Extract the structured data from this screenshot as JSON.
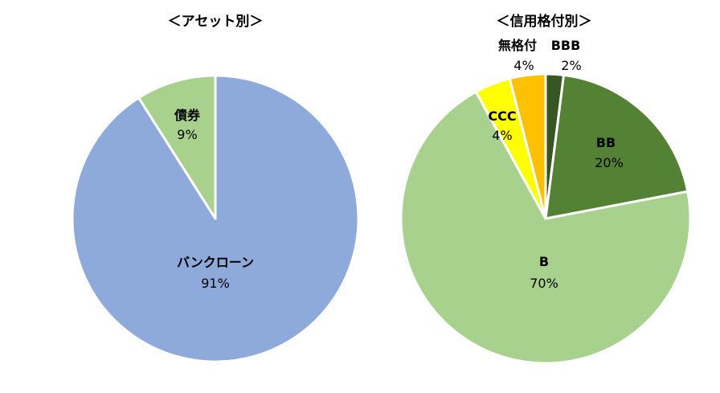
{
  "chart_data": [
    {
      "type": "pie",
      "title": "＜アセット別＞",
      "slices": [
        {
          "label": "バンクローン",
          "value": 91,
          "pct_label": "91%",
          "color": "#8eaadb"
        },
        {
          "label": "債券",
          "value": 9,
          "pct_label": "9%",
          "color": "#a9d18e"
        }
      ]
    },
    {
      "type": "pie",
      "title": "＜信用格付別＞",
      "slices": [
        {
          "label": "BBB",
          "value": 2,
          "pct_label": "2%",
          "color": "#375623"
        },
        {
          "label": "BB",
          "value": 20,
          "pct_label": "20%",
          "color": "#548235"
        },
        {
          "label": "B",
          "value": 70,
          "pct_label": "70%",
          "color": "#a9d18e"
        },
        {
          "label": "CCC",
          "value": 4,
          "pct_label": "4%",
          "color": "#ffff00"
        },
        {
          "label": "無格付",
          "value": 4,
          "pct_label": "4%",
          "color": "#ffc000"
        }
      ]
    }
  ]
}
